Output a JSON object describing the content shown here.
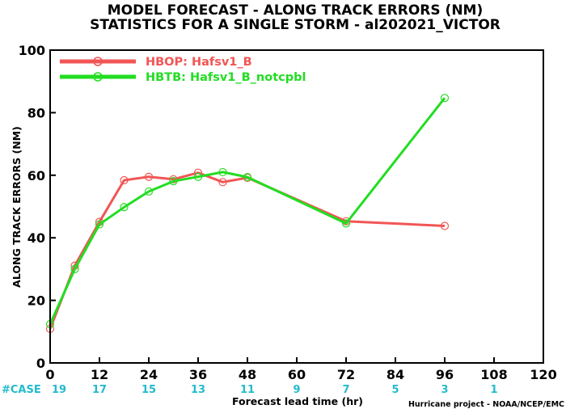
{
  "chart_data": {
    "type": "line",
    "title": "MODEL FORECAST - ALONG TRACK ERRORS (NM)",
    "subtitle": "STATISTICS FOR A SINGLE STORM - al202021_VICTOR",
    "xlabel": "Forecast lead time (hr)",
    "ylabel": "ALONG TRACK ERRORS (NM)",
    "xlim": [
      0,
      120
    ],
    "ylim": [
      0,
      100
    ],
    "xticks": [
      0,
      12,
      24,
      36,
      48,
      60,
      72,
      84,
      96,
      108,
      120
    ],
    "yticks": [
      0,
      20,
      40,
      60,
      80,
      100
    ],
    "grid": false,
    "legend_position": "top-left",
    "series": [
      {
        "name": "HBOP: Hafsv1_B",
        "color": "#f25555",
        "x": [
          0,
          6,
          12,
          18,
          24,
          30,
          36,
          42,
          48,
          72,
          96
        ],
        "y": [
          10.9,
          31.1,
          45.1,
          58.4,
          59.5,
          58.7,
          60.8,
          57.8,
          59.2,
          45.3,
          43.8
        ]
      },
      {
        "name": "HBTB: Hafsv1_B_notcpbl",
        "color": "#22dd22",
        "x": [
          0,
          6,
          12,
          18,
          24,
          30,
          36,
          42,
          48,
          72,
          96
        ],
        "y": [
          12.4,
          30.0,
          44.3,
          49.8,
          54.8,
          58.1,
          59.5,
          61.0,
          59.4,
          44.6,
          84.7
        ]
      }
    ],
    "case_label": "#CASE",
    "case_counts": [
      {
        "x": 0,
        "count": "19"
      },
      {
        "x": 12,
        "count": "17"
      },
      {
        "x": 24,
        "count": "15"
      },
      {
        "x": 36,
        "count": "13"
      },
      {
        "x": 48,
        "count": "11"
      },
      {
        "x": 60,
        "count": "9"
      },
      {
        "x": 72,
        "count": "7"
      },
      {
        "x": 84,
        "count": "5"
      },
      {
        "x": 96,
        "count": "3"
      },
      {
        "x": 108,
        "count": "1"
      }
    ],
    "case_color": "#22bbcc",
    "credit": "Hurricane project - NOAA/NCEP/EMC"
  }
}
